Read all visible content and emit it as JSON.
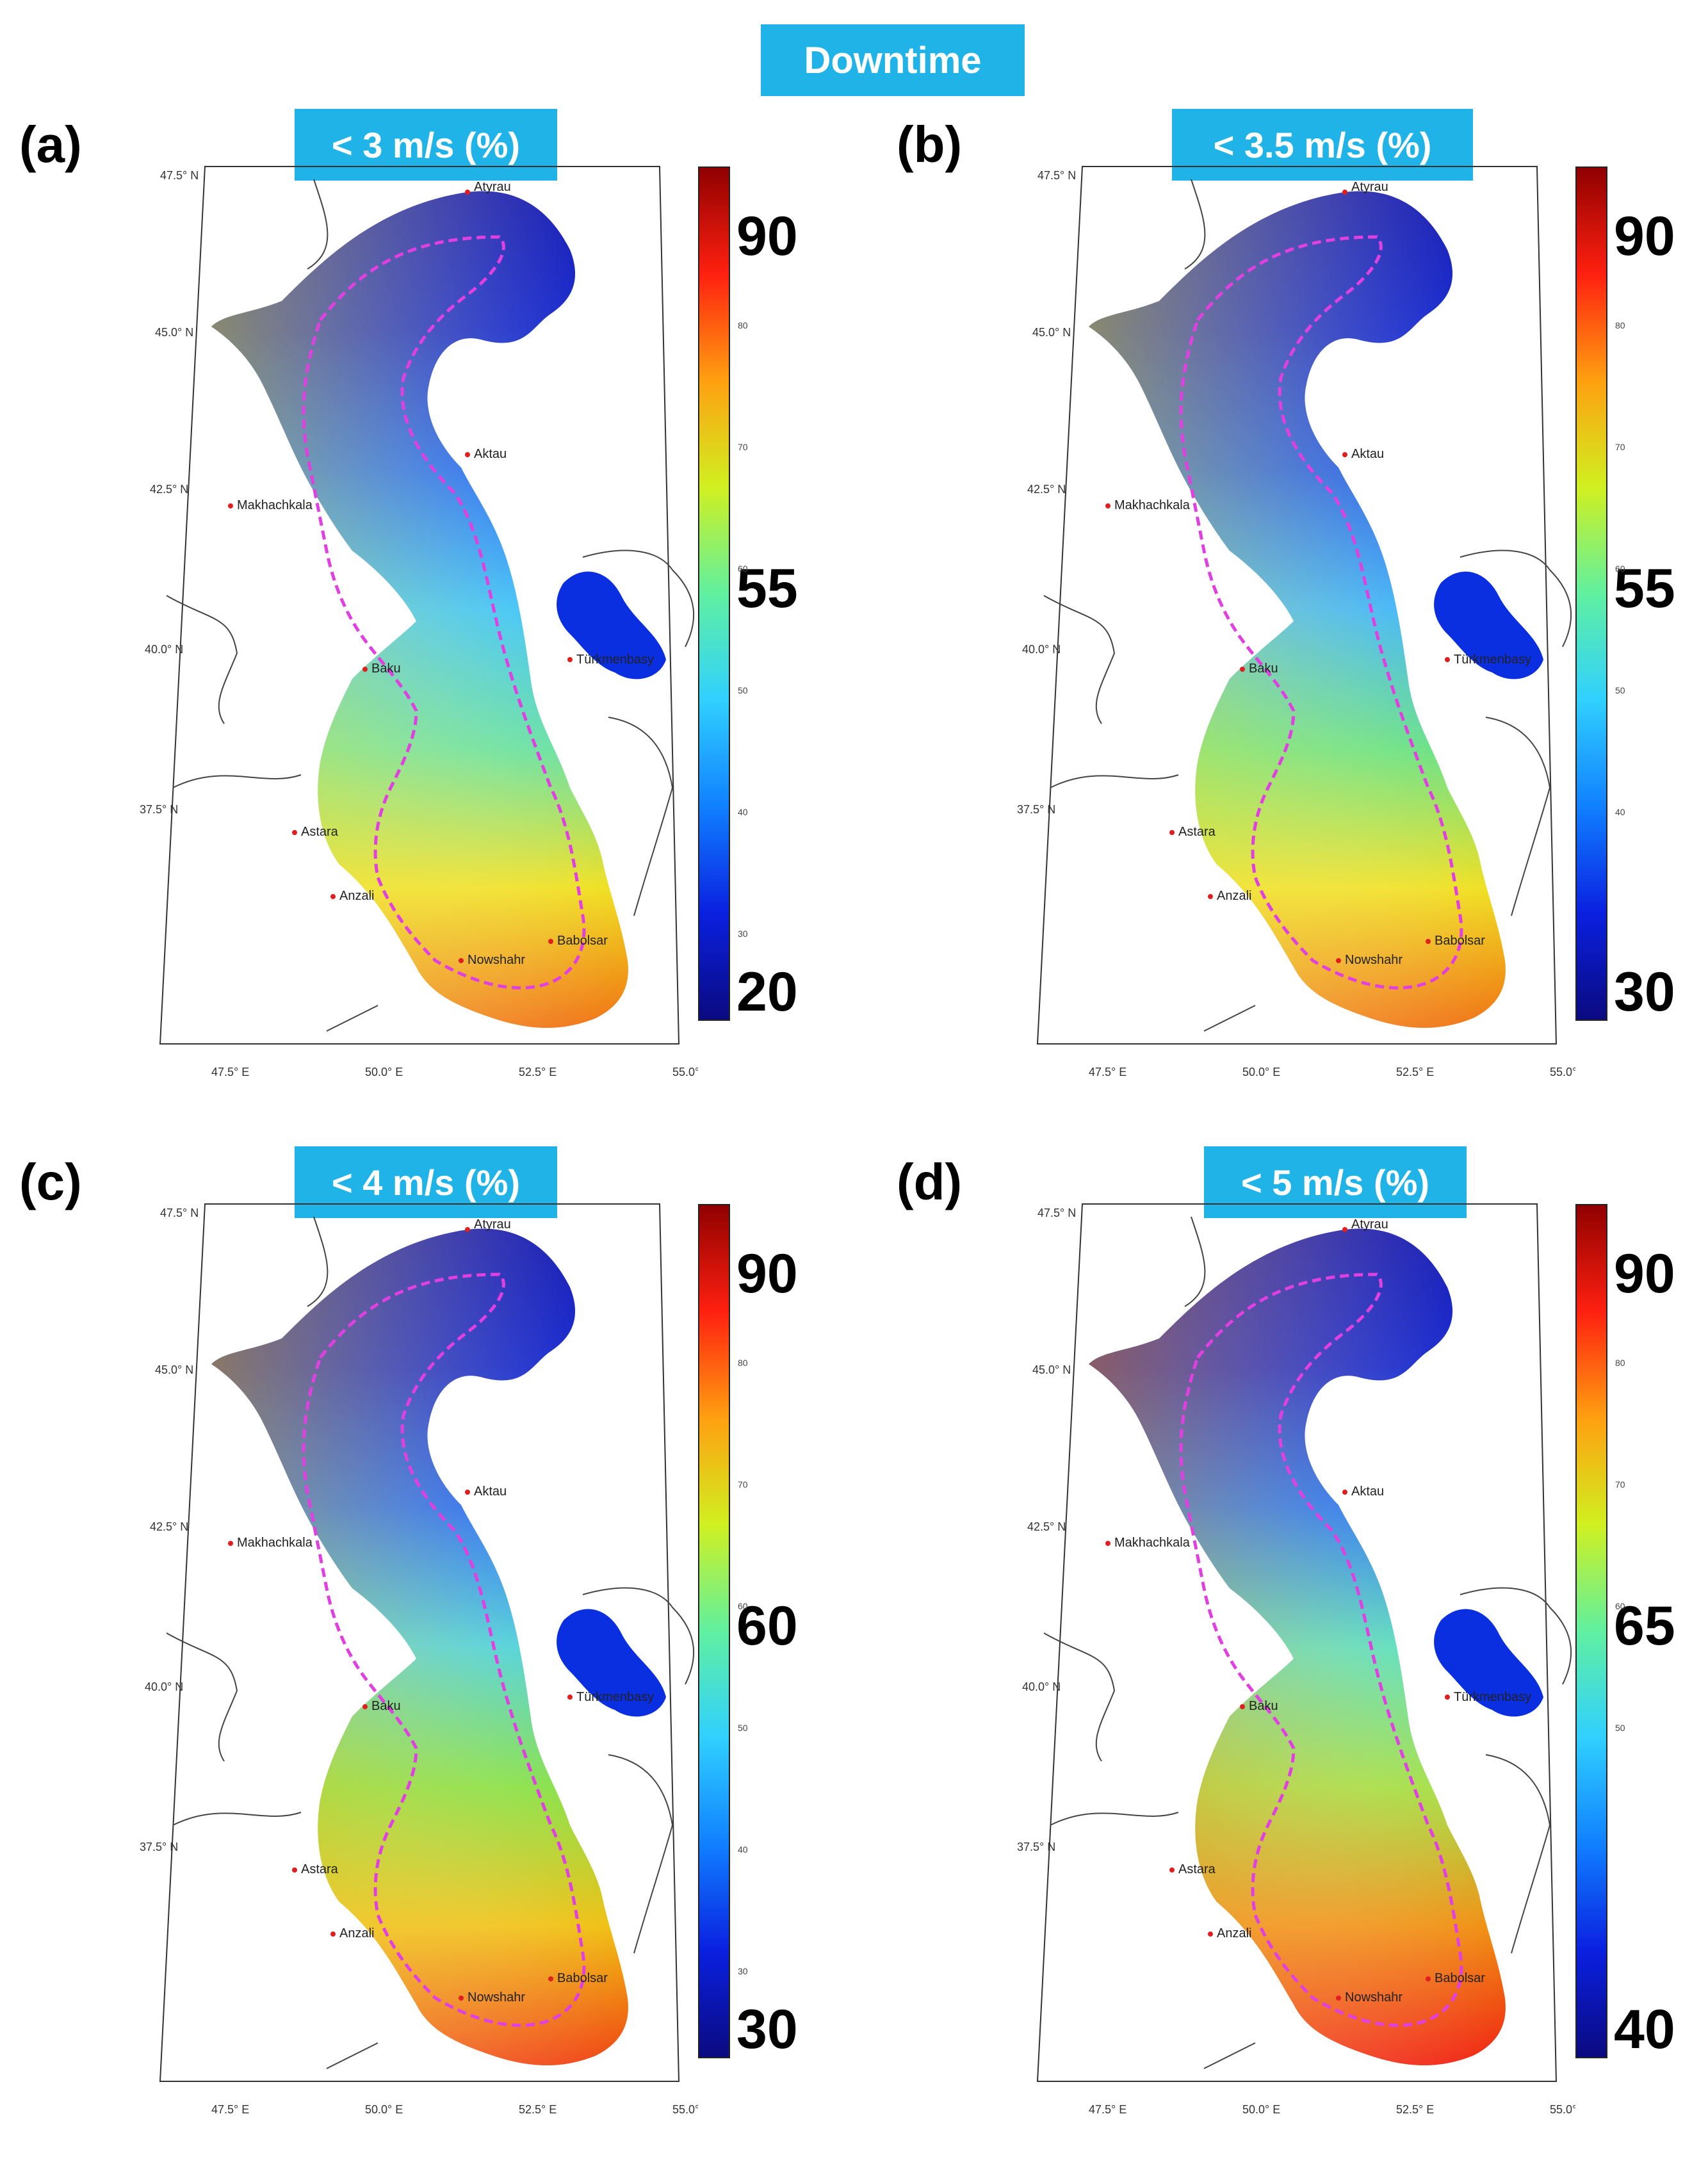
{
  "figure_title": "Downtime",
  "panels": [
    {
      "label": "(a)",
      "subtitle": "< 3 m/s (%)",
      "cbar_ticks": [
        "90",
        "55",
        "20"
      ],
      "cbar_minor": [
        "80",
        "70",
        "60",
        "50",
        "40",
        "30"
      ]
    },
    {
      "label": "(b)",
      "subtitle": "< 3.5 m/s (%)",
      "cbar_ticks": [
        "90",
        "55",
        "30"
      ],
      "cbar_minor": [
        "80",
        "70",
        "60",
        "50",
        "40"
      ]
    },
    {
      "label": "(c)",
      "subtitle": "< 4 m/s (%)",
      "cbar_ticks": [
        "90",
        "60",
        "30"
      ],
      "cbar_minor": [
        "80",
        "70",
        "60",
        "50",
        "40",
        "30"
      ]
    },
    {
      "label": "(d)",
      "subtitle": "< 5 m/s (%)",
      "cbar_ticks": [
        "90",
        "65",
        "40"
      ],
      "cbar_minor": [
        "80",
        "70",
        "60",
        "50"
      ]
    }
  ],
  "lat_labels": [
    "47.5° N",
    "45.0° N",
    "42.5° N",
    "40.0° N",
    "37.5° N"
  ],
  "lon_labels": [
    "47.5° E",
    "50.0° E",
    "52.5° E",
    "55.0° E"
  ],
  "cities": [
    "Atyrau",
    "Aktau",
    "Makhachkala",
    "Türkmenbasy",
    "Baku",
    "Astara",
    "Anzali",
    "Nowshahr",
    "Babolsar"
  ],
  "colors": {
    "accent": "#1fb3e8",
    "contour": "#e040e0",
    "city_marker": "#e02020"
  }
}
